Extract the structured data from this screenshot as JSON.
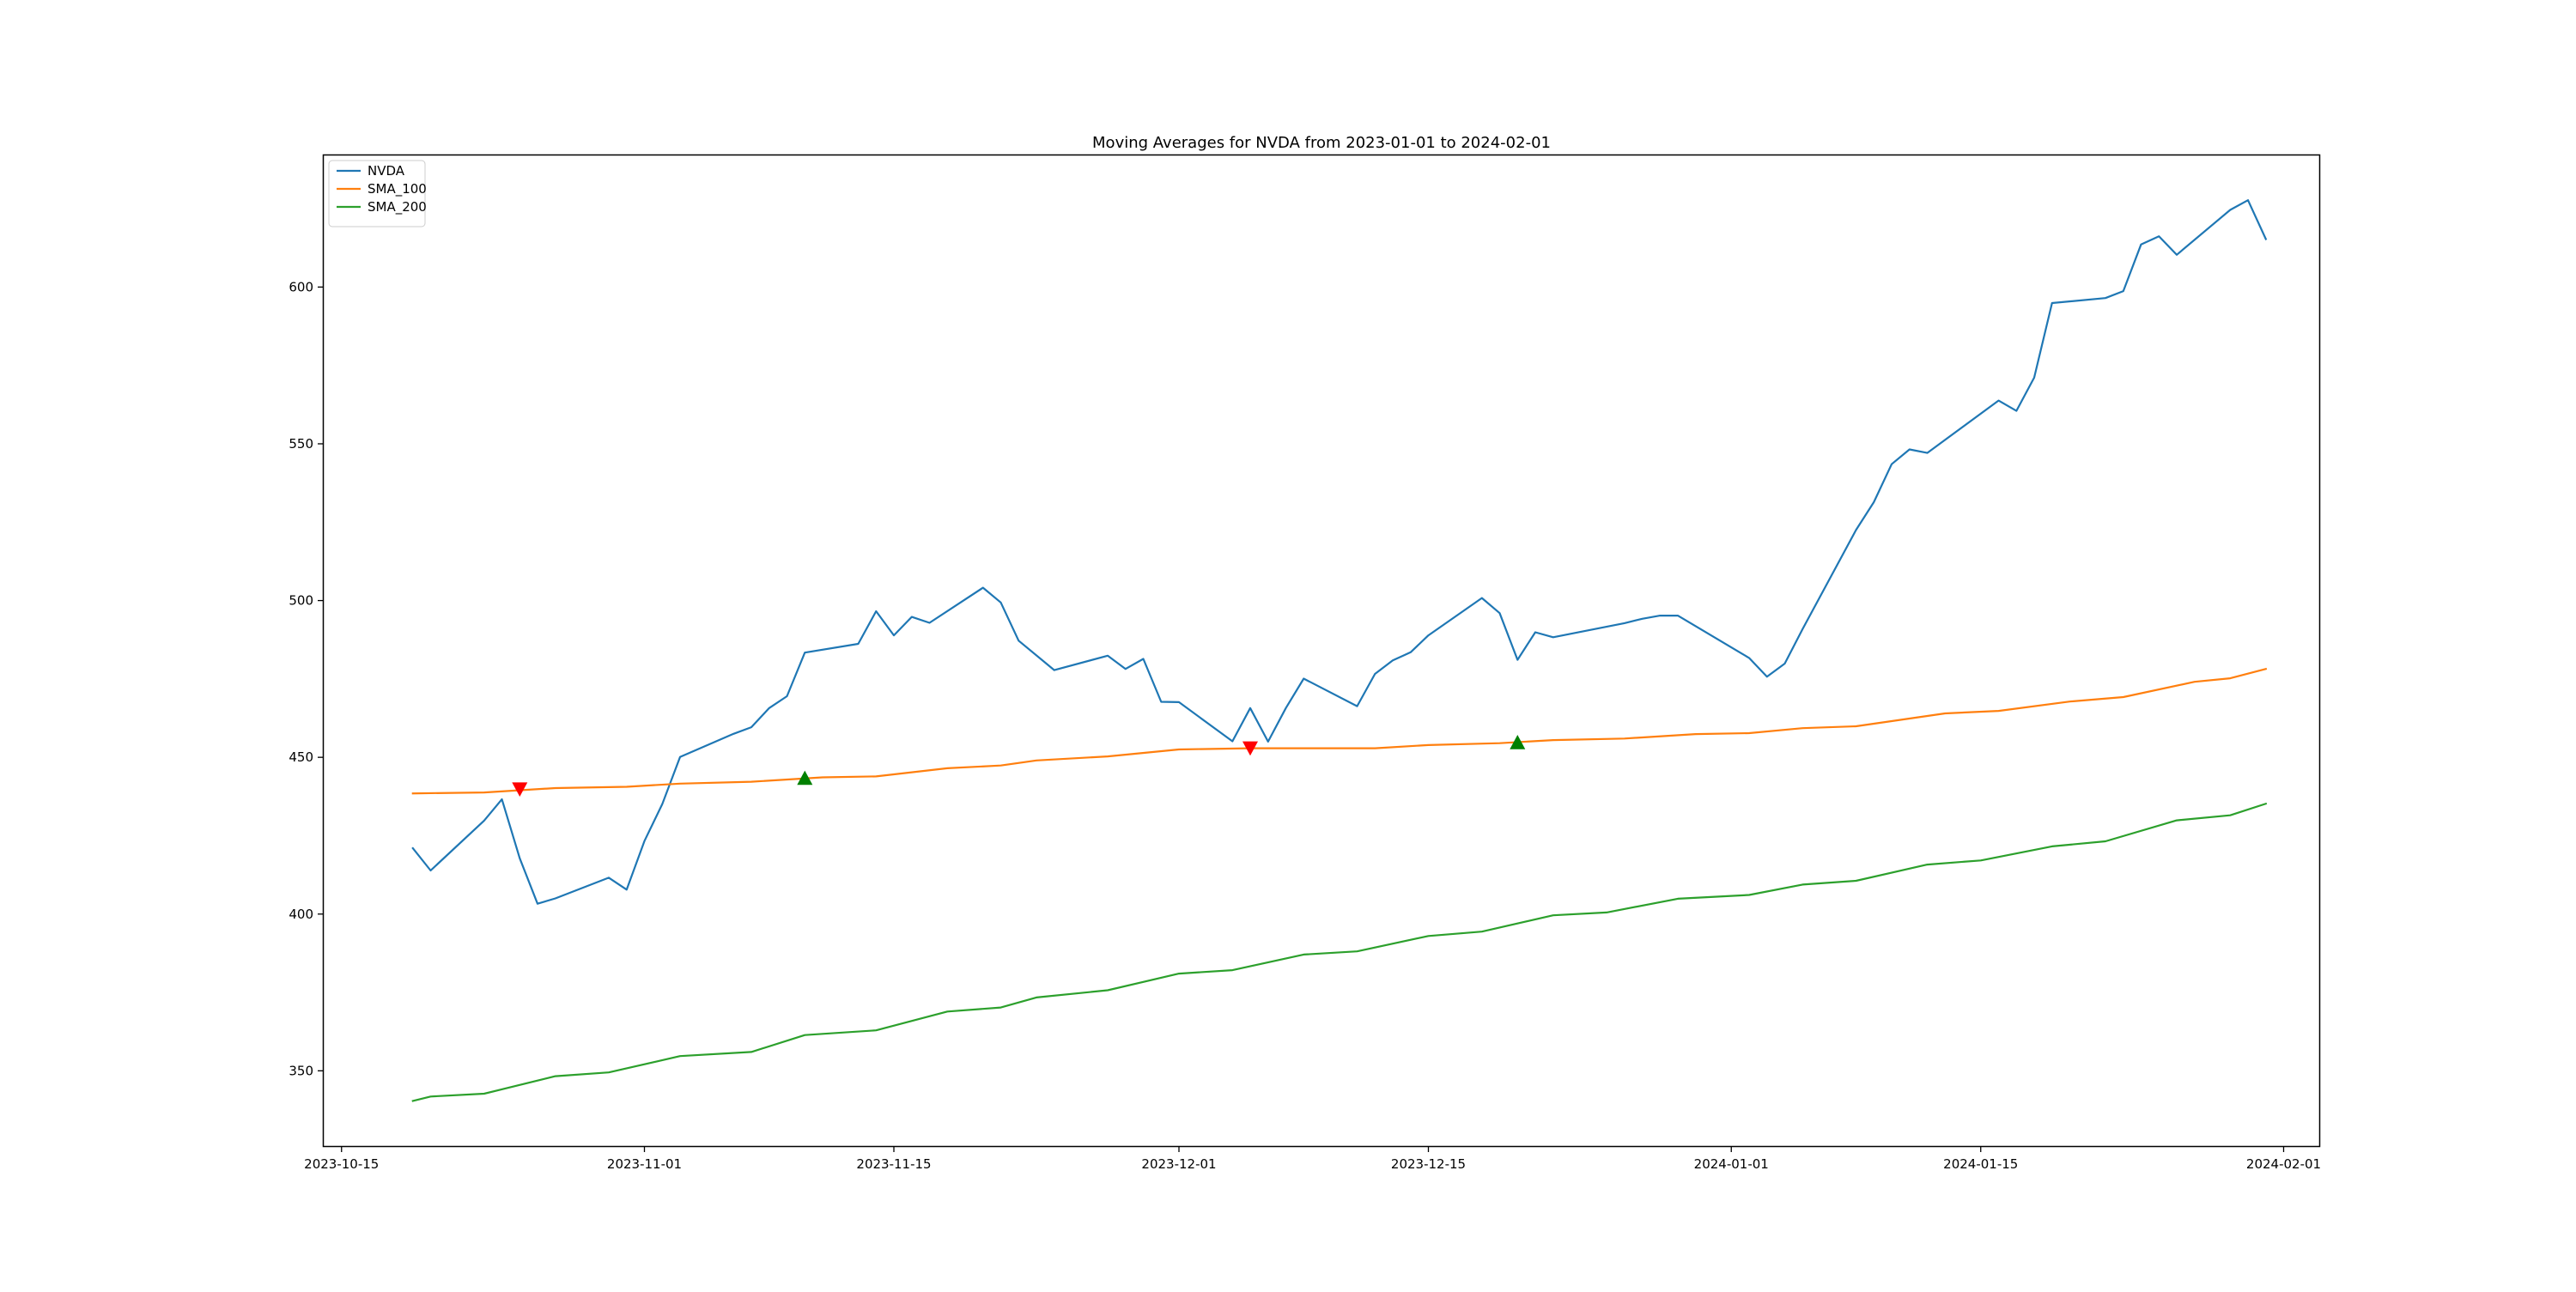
{
  "chart_data": {
    "type": "line",
    "title": "Moving Averages for NVDA from 2023-01-01 to 2024-02-01",
    "xlabel": "",
    "ylabel": "",
    "x_axis": "date",
    "xlim": [
      "2023-10-14",
      "2024-02-03"
    ],
    "ylim": [
      326,
      642
    ],
    "x_ticks": [
      "2023-10-15",
      "2023-11-01",
      "2023-11-15",
      "2023-12-01",
      "2023-12-15",
      "2024-01-01",
      "2024-01-15",
      "2024-02-01"
    ],
    "y_ticks": [
      350,
      400,
      450,
      500,
      550,
      600
    ],
    "grid": false,
    "legend_position": "upper-left",
    "series": [
      {
        "name": "NVDA",
        "color": "#1f77b4",
        "points": [
          [
            "2023-10-19",
            421.0
          ],
          [
            "2023-10-20",
            413.9
          ],
          [
            "2023-10-23",
            429.8
          ],
          [
            "2023-10-24",
            436.6
          ],
          [
            "2023-10-25",
            417.8
          ],
          [
            "2023-10-26",
            403.3
          ],
          [
            "2023-10-27",
            405.0
          ],
          [
            "2023-10-30",
            411.6
          ],
          [
            "2023-10-31",
            407.8
          ],
          [
            "2023-11-01",
            423.3
          ],
          [
            "2023-11-02",
            435.1
          ],
          [
            "2023-11-03",
            450.1
          ],
          [
            "2023-11-06",
            457.5
          ],
          [
            "2023-11-07",
            459.6
          ],
          [
            "2023-11-08",
            465.7
          ],
          [
            "2023-11-09",
            469.5
          ],
          [
            "2023-11-10",
            483.4
          ],
          [
            "2023-11-13",
            486.2
          ],
          [
            "2023-11-14",
            496.6
          ],
          [
            "2023-11-15",
            488.9
          ],
          [
            "2023-11-16",
            494.8
          ],
          [
            "2023-11-17",
            492.9
          ],
          [
            "2023-11-20",
            504.1
          ],
          [
            "2023-11-21",
            499.4
          ],
          [
            "2023-11-22",
            487.2
          ],
          [
            "2023-11-24",
            477.8
          ],
          [
            "2023-11-27",
            482.4
          ],
          [
            "2023-11-28",
            478.2
          ],
          [
            "2023-11-29",
            481.4
          ],
          [
            "2023-11-30",
            467.7
          ],
          [
            "2023-12-01",
            467.6
          ],
          [
            "2023-12-04",
            455.1
          ],
          [
            "2023-12-05",
            465.7
          ],
          [
            "2023-12-06",
            455.0
          ],
          [
            "2023-12-07",
            465.7
          ],
          [
            "2023-12-08",
            475.1
          ],
          [
            "2023-12-11",
            466.3
          ],
          [
            "2023-12-12",
            476.6
          ],
          [
            "2023-12-13",
            480.9
          ],
          [
            "2023-12-14",
            483.5
          ],
          [
            "2023-12-15",
            488.9
          ],
          [
            "2023-12-18",
            500.8
          ],
          [
            "2023-12-19",
            496.0
          ],
          [
            "2023-12-20",
            481.1
          ],
          [
            "2023-12-21",
            489.9
          ],
          [
            "2023-12-22",
            488.3
          ],
          [
            "2023-12-26",
            492.8
          ],
          [
            "2023-12-27",
            494.2
          ],
          [
            "2023-12-28",
            495.2
          ],
          [
            "2023-12-29",
            495.2
          ],
          [
            "2024-01-02",
            481.7
          ],
          [
            "2024-01-03",
            475.7
          ],
          [
            "2024-01-04",
            479.9
          ],
          [
            "2024-01-05",
            490.9
          ],
          [
            "2024-01-08",
            522.5
          ],
          [
            "2024-01-09",
            531.4
          ],
          [
            "2024-01-10",
            543.5
          ],
          [
            "2024-01-11",
            548.2
          ],
          [
            "2024-01-12",
            547.1
          ],
          [
            "2024-01-16",
            563.8
          ],
          [
            "2024-01-17",
            560.5
          ],
          [
            "2024-01-18",
            571.1
          ],
          [
            "2024-01-19",
            594.9
          ],
          [
            "2024-01-22",
            596.5
          ],
          [
            "2024-01-23",
            598.7
          ],
          [
            "2024-01-24",
            613.6
          ],
          [
            "2024-01-25",
            616.2
          ],
          [
            "2024-01-26",
            610.3
          ],
          [
            "2024-01-29",
            624.6
          ],
          [
            "2024-01-30",
            627.7
          ],
          [
            "2024-01-31",
            615.3
          ]
        ]
      },
      {
        "name": "SMA_100",
        "color": "#ff7f0e",
        "points": [
          [
            "2023-10-19",
            438.5
          ],
          [
            "2023-10-23",
            438.8
          ],
          [
            "2023-10-27",
            440.2
          ],
          [
            "2023-10-31",
            440.6
          ],
          [
            "2023-11-03",
            441.6
          ],
          [
            "2023-11-07",
            442.2
          ],
          [
            "2023-11-11",
            443.6
          ],
          [
            "2023-11-14",
            443.9
          ],
          [
            "2023-11-18",
            446.5
          ],
          [
            "2023-11-21",
            447.4
          ],
          [
            "2023-11-23",
            449.0
          ],
          [
            "2023-11-27",
            450.3
          ],
          [
            "2023-12-01",
            452.5
          ],
          [
            "2023-12-05",
            452.9
          ],
          [
            "2023-12-12",
            452.9
          ],
          [
            "2023-12-15",
            453.9
          ],
          [
            "2023-12-19",
            454.5
          ],
          [
            "2023-12-22",
            455.5
          ],
          [
            "2023-12-26",
            456.0
          ],
          [
            "2023-12-30",
            457.4
          ],
          [
            "2024-01-02",
            457.7
          ],
          [
            "2024-01-05",
            459.3
          ],
          [
            "2024-01-08",
            459.9
          ],
          [
            "2024-01-13",
            464.0
          ],
          [
            "2024-01-16",
            464.8
          ],
          [
            "2024-01-20",
            467.8
          ],
          [
            "2024-01-23",
            469.2
          ],
          [
            "2024-01-27",
            474.1
          ],
          [
            "2024-01-29",
            475.2
          ],
          [
            "2024-01-31",
            478.2
          ]
        ]
      },
      {
        "name": "SMA_200",
        "color": "#2ca02c",
        "points": [
          [
            "2023-10-19",
            340.4
          ],
          [
            "2023-10-20",
            341.8
          ],
          [
            "2023-10-23",
            342.7
          ],
          [
            "2023-10-27",
            348.3
          ],
          [
            "2023-10-30",
            349.5
          ],
          [
            "2023-11-03",
            354.7
          ],
          [
            "2023-11-07",
            356.0
          ],
          [
            "2023-11-10",
            361.4
          ],
          [
            "2023-11-14",
            362.9
          ],
          [
            "2023-11-18",
            368.9
          ],
          [
            "2023-11-21",
            370.2
          ],
          [
            "2023-11-23",
            373.4
          ],
          [
            "2023-11-27",
            375.7
          ],
          [
            "2023-12-01",
            381.0
          ],
          [
            "2023-12-04",
            382.1
          ],
          [
            "2023-12-08",
            387.1
          ],
          [
            "2023-12-11",
            388.1
          ],
          [
            "2023-12-15",
            393.0
          ],
          [
            "2023-12-18",
            394.4
          ],
          [
            "2023-12-22",
            399.6
          ],
          [
            "2023-12-25",
            400.5
          ],
          [
            "2023-12-29",
            404.9
          ],
          [
            "2024-01-02",
            406.1
          ],
          [
            "2024-01-05",
            409.4
          ],
          [
            "2024-01-08",
            410.6
          ],
          [
            "2024-01-12",
            415.8
          ],
          [
            "2024-01-15",
            417.1
          ],
          [
            "2024-01-19",
            421.6
          ],
          [
            "2024-01-22",
            423.2
          ],
          [
            "2024-01-26",
            429.9
          ],
          [
            "2024-01-29",
            431.5
          ],
          [
            "2024-01-31",
            435.2
          ]
        ]
      }
    ],
    "markers": [
      {
        "kind": "sell",
        "shape": "triangle-down",
        "color": "#ff0000",
        "x": "2023-10-25",
        "y": 439.9
      },
      {
        "kind": "buy",
        "shape": "triangle-up",
        "color": "#008000",
        "x": "2023-11-10",
        "y": 443.3
      },
      {
        "kind": "sell",
        "shape": "triangle-down",
        "color": "#ff0000",
        "x": "2023-12-05",
        "y": 453.0
      },
      {
        "kind": "buy",
        "shape": "triangle-up",
        "color": "#008000",
        "x": "2023-12-20",
        "y": 454.7
      }
    ]
  }
}
